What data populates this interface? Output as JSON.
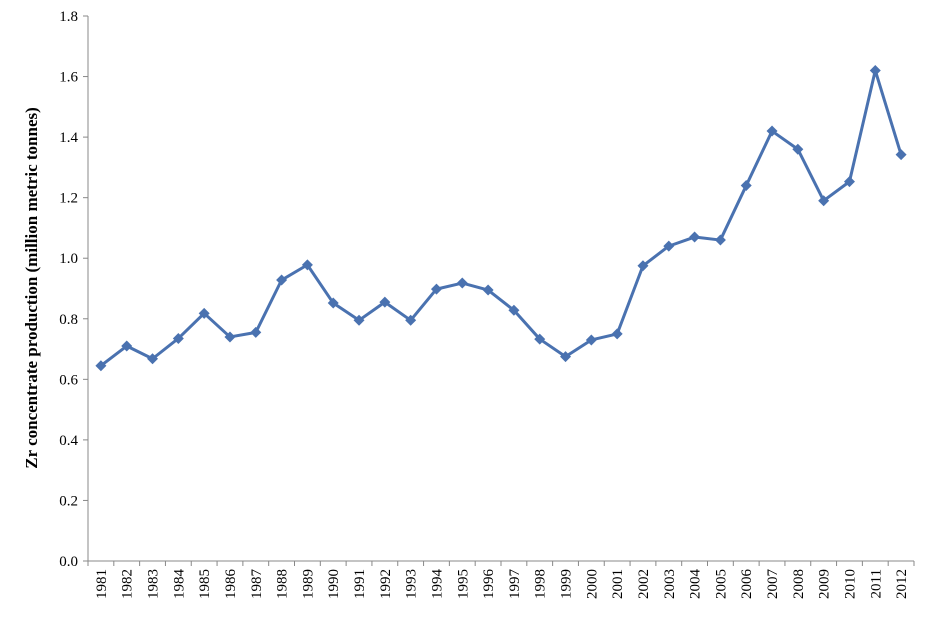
{
  "chart_data": {
    "type": "line",
    "title": "",
    "xlabel": "",
    "ylabel": "Zr concentrate production (million metric tonnes)",
    "ylim": [
      0,
      1.8
    ],
    "yticks": [
      "0.0",
      "0.2",
      "0.4",
      "0.6",
      "0.8",
      "1.0",
      "1.2",
      "1.4",
      "1.6",
      "1.8"
    ],
    "grid": false,
    "legend": "none",
    "categories": [
      "1981",
      "1982",
      "1983",
      "1984",
      "1985",
      "1986",
      "1987",
      "1988",
      "1989",
      "1990",
      "1991",
      "1992",
      "1993",
      "1994",
      "1995",
      "1996",
      "1997",
      "1998",
      "1999",
      "2000",
      "2001",
      "2002",
      "2003",
      "2004",
      "2005",
      "2006",
      "2007",
      "2008",
      "2009",
      "2010",
      "2011",
      "2012"
    ],
    "series": [
      {
        "color": "#4a72b0",
        "marker": "diamond",
        "values": [
          0.645,
          0.71,
          0.668,
          0.735,
          0.818,
          0.74,
          0.755,
          0.928,
          0.978,
          0.852,
          0.795,
          0.855,
          0.795,
          0.898,
          0.918,
          0.895,
          0.828,
          0.733,
          0.675,
          0.73,
          0.75,
          0.975,
          1.04,
          1.07,
          1.06,
          1.24,
          1.42,
          1.36,
          1.19,
          1.253,
          1.62,
          1.342
        ]
      }
    ]
  }
}
